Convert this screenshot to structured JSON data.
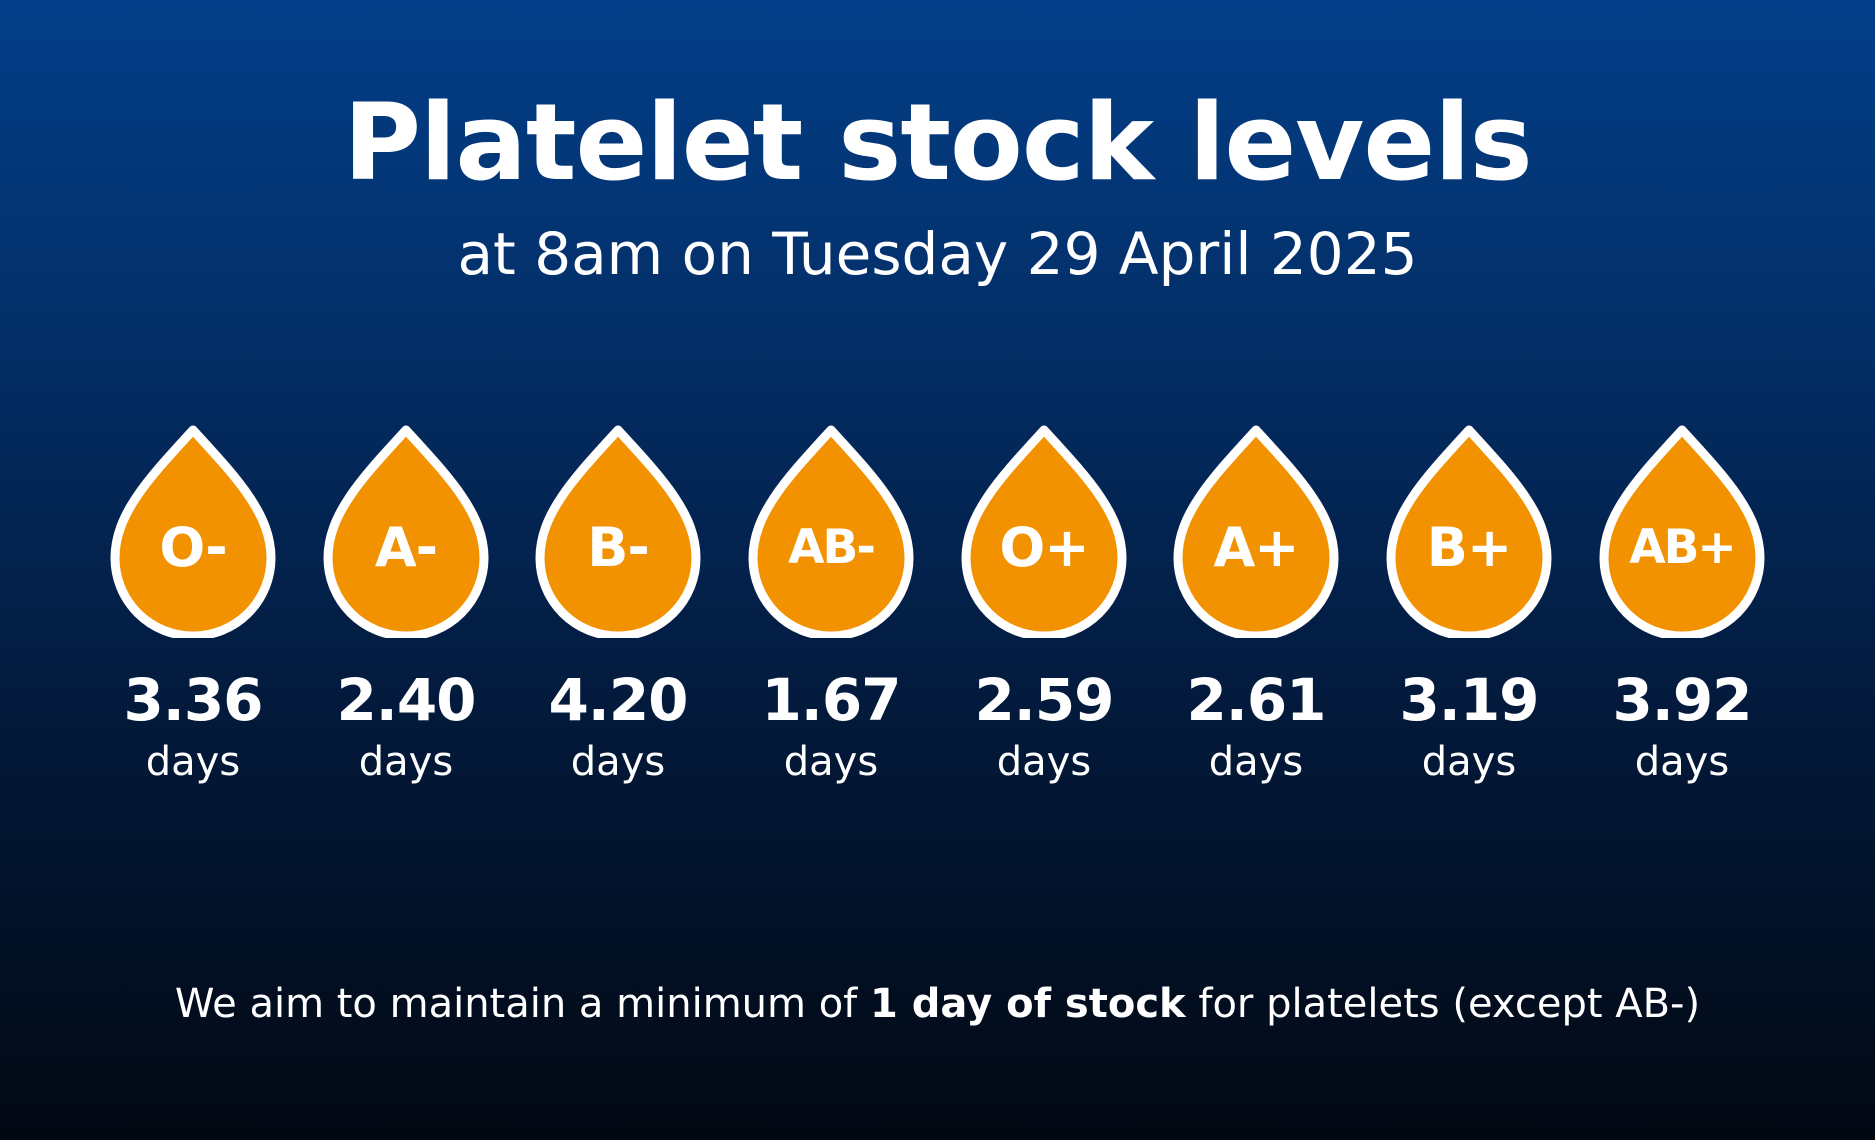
{
  "title": "Platelet stock levels",
  "subtitle": "at 8am on Tuesday 29 April 2025",
  "colors": {
    "drop_fill": "#f39200",
    "drop_outline": "#ffffff",
    "background_top": "#033f89",
    "background_bottom": "#020812",
    "text": "#ffffff"
  },
  "stock": [
    {
      "group": "O-",
      "value": "3.36",
      "unit": "days",
      "icon": "blood-drop-icon"
    },
    {
      "group": "A-",
      "value": "2.40",
      "unit": "days",
      "icon": "blood-drop-icon"
    },
    {
      "group": "B-",
      "value": "4.20",
      "unit": "days",
      "icon": "blood-drop-icon"
    },
    {
      "group": "AB-",
      "value": "1.67",
      "unit": "days",
      "icon": "blood-drop-icon"
    },
    {
      "group": "O+",
      "value": "2.59",
      "unit": "days",
      "icon": "blood-drop-icon"
    },
    {
      "group": "A+",
      "value": "2.61",
      "unit": "days",
      "icon": "blood-drop-icon"
    },
    {
      "group": "B+",
      "value": "3.19",
      "unit": "days",
      "icon": "blood-drop-icon"
    },
    {
      "group": "AB+",
      "value": "3.92",
      "unit": "days",
      "icon": "blood-drop-icon"
    }
  ],
  "footnote": {
    "prefix": "We aim to maintain a minimum of ",
    "emphasis": "1 day of stock",
    "suffix": " for platelets (except AB-)"
  }
}
